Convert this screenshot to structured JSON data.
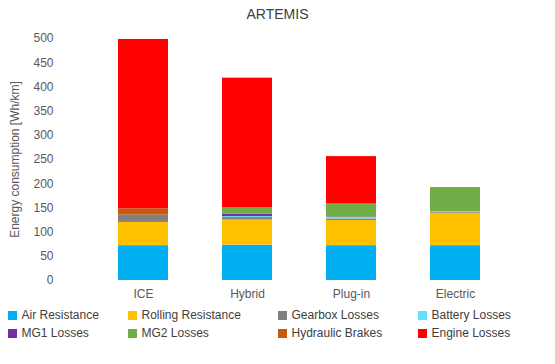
{
  "chart_data": {
    "type": "bar",
    "title": "ARTEMIS",
    "y_label": "Energy consumption [Wh/km]",
    "categories": [
      "ICE",
      "Hybrid",
      "Plug-in",
      "Electric"
    ],
    "stacked": true,
    "grid": false,
    "legend": "bottom",
    "ylim": [
      0,
      500
    ],
    "yticks": [
      0,
      50,
      100,
      150,
      200,
      250,
      300,
      350,
      400,
      450,
      500
    ],
    "series": [
      {
        "name": "Air Resistance",
        "color": "#00b0f0",
        "values": [
          72,
          73,
          72,
          72
        ]
      },
      {
        "name": "Rolling Resistance",
        "color": "#ffc000",
        "values": [
          48,
          52,
          52,
          67
        ]
      },
      {
        "name": "Gearbox Losses",
        "color": "#808080",
        "values": [
          15,
          5,
          3,
          2
        ]
      },
      {
        "name": "Battery Losses",
        "color": "#66e0ff",
        "values": [
          0,
          2,
          3,
          1
        ]
      },
      {
        "name": "MG1 Losses",
        "color": "#7030a0",
        "values": [
          0,
          5,
          1,
          0
        ]
      },
      {
        "name": "MG2 Losses",
        "color": "#70ad47",
        "values": [
          0,
          13,
          27,
          50
        ]
      },
      {
        "name": "Hydraulic Brakes",
        "color": "#c55a11",
        "values": [
          13,
          0,
          0,
          0
        ]
      },
      {
        "name": "Engine Losses",
        "color": "#ff0000",
        "values": [
          350,
          268,
          98,
          0
        ]
      }
    ]
  }
}
